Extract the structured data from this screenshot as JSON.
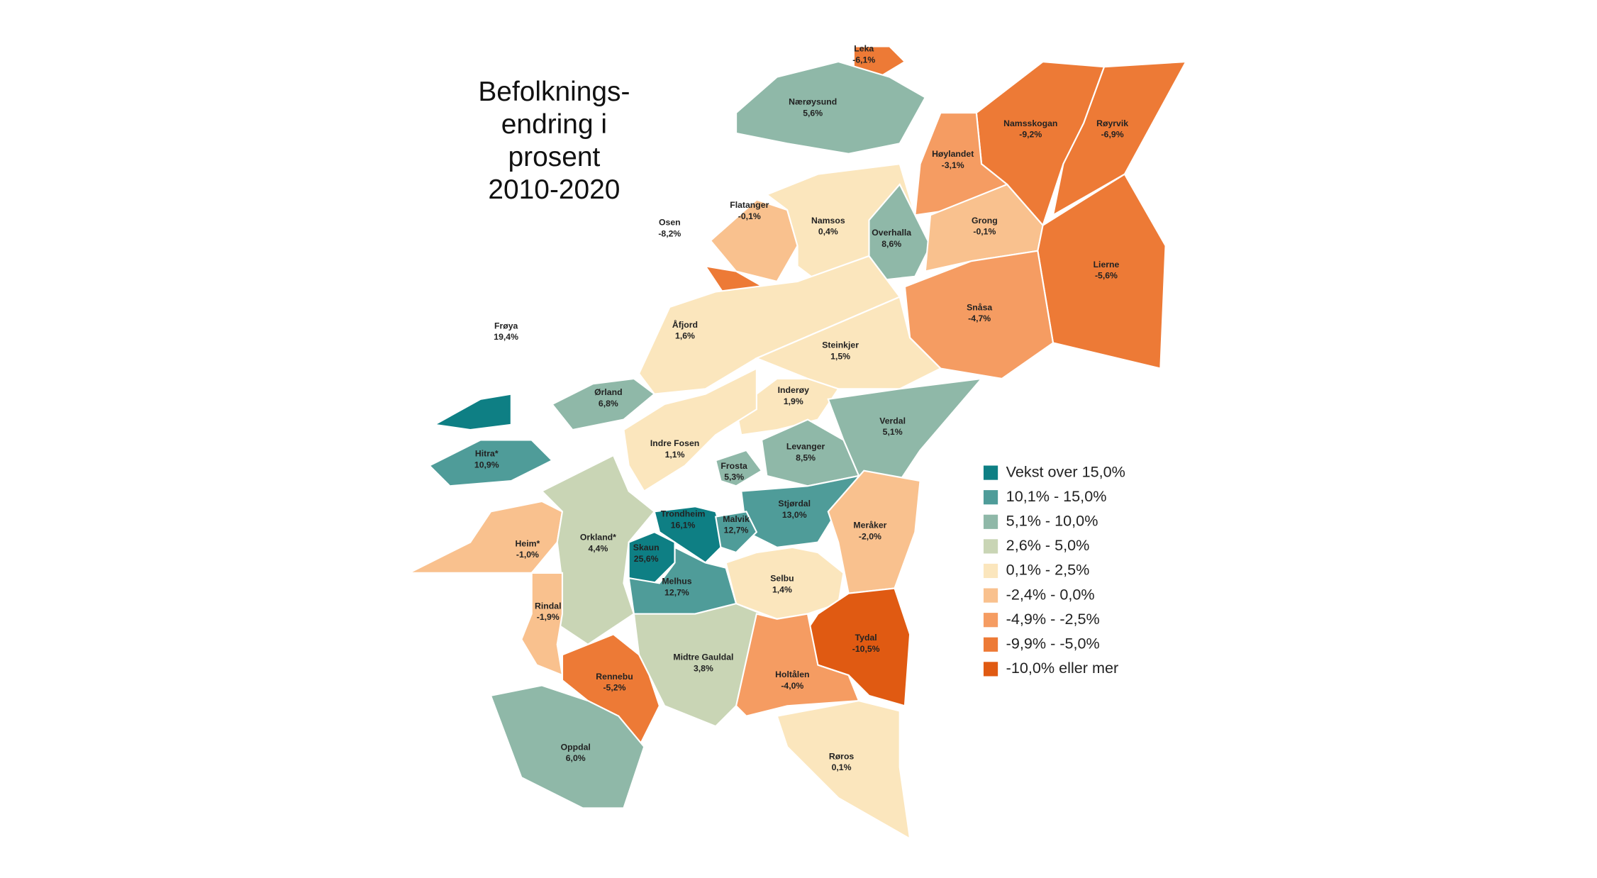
{
  "title_lines": [
    "Befolknings-",
    "endring i",
    "prosent",
    "2010-2020"
  ],
  "regions": [
    {
      "name": "Leka",
      "value": -6.1,
      "value_label": "-6,1%",
      "color": "#ed7a36"
    },
    {
      "name": "Nærøysund",
      "value": 5.6,
      "value_label": "5,6%",
      "color": "#8fb8a8"
    },
    {
      "name": "Namsskogan",
      "value": -9.2,
      "value_label": "-9,2%",
      "color": "#ed7a36"
    },
    {
      "name": "Røyrvik",
      "value": -6.9,
      "value_label": "-6,9%",
      "color": "#ed7a36"
    },
    {
      "name": "Høylandet",
      "value": -3.1,
      "value_label": "-3,1%",
      "color": "#f59c62"
    },
    {
      "name": "Flatanger",
      "value": -0.1,
      "value_label": "-0,1%",
      "color": "#f9c18e"
    },
    {
      "name": "Osen",
      "value": -8.2,
      "value_label": "-8,2%",
      "color": "#ed7a36"
    },
    {
      "name": "Namsos",
      "value": 0.4,
      "value_label": "0,4%",
      "color": "#fbe6bd"
    },
    {
      "name": "Overhalla",
      "value": 8.6,
      "value_label": "8,6%",
      "color": "#8fb8a8"
    },
    {
      "name": "Grong",
      "value": -0.1,
      "value_label": "-0,1%",
      "color": "#f9c18e"
    },
    {
      "name": "Lierne",
      "value": -5.6,
      "value_label": "-5,6%",
      "color": "#ed7a36"
    },
    {
      "name": "Snåsa",
      "value": -4.7,
      "value_label": "-4,7%",
      "color": "#f59c62"
    },
    {
      "name": "Frøya",
      "value": 19.4,
      "value_label": "19,4%",
      "color": "#0e7f84"
    },
    {
      "name": "Åfjord",
      "value": 1.6,
      "value_label": "1,6%",
      "color": "#fbe6bd"
    },
    {
      "name": "Steinkjer",
      "value": 1.5,
      "value_label": "1,5%",
      "color": "#fbe6bd"
    },
    {
      "name": "Ørland",
      "value": 6.8,
      "value_label": "6,8%",
      "color": "#8fb8a8"
    },
    {
      "name": "Inderøy",
      "value": 1.9,
      "value_label": "1,9%",
      "color": "#fbe6bd"
    },
    {
      "name": "Verdal",
      "value": 5.1,
      "value_label": "5,1%",
      "color": "#8fb8a8"
    },
    {
      "name": "Hitra*",
      "value": 10.9,
      "value_label": "10,9%",
      "color": "#4f9c99"
    },
    {
      "name": "Indre Fosen",
      "value": 1.1,
      "value_label": "1,1%",
      "color": "#fbe6bd"
    },
    {
      "name": "Levanger",
      "value": 8.5,
      "value_label": "8,5%",
      "color": "#8fb8a8"
    },
    {
      "name": "Frosta",
      "value": 5.3,
      "value_label": "5,3%",
      "color": "#8fb8a8"
    },
    {
      "name": "Stjørdal",
      "value": 13.0,
      "value_label": "13,0%",
      "color": "#4f9c99"
    },
    {
      "name": "Trondheim",
      "value": 16.1,
      "value_label": "16,1%",
      "color": "#0e7f84"
    },
    {
      "name": "Malvik",
      "value": 12.7,
      "value_label": "12,7%",
      "color": "#4f9c99"
    },
    {
      "name": "Meråker",
      "value": -2.0,
      "value_label": "-2,0%",
      "color": "#f9c18e"
    },
    {
      "name": "Heim*",
      "value": -1.0,
      "value_label": "-1,0%",
      "color": "#f9c18e"
    },
    {
      "name": "Orkland*",
      "value": 4.4,
      "value_label": "4,4%",
      "color": "#c9d5b5"
    },
    {
      "name": "Skaun",
      "value": 25.6,
      "value_label": "25,6%",
      "color": "#0e7f84"
    },
    {
      "name": "Selbu",
      "value": 1.4,
      "value_label": "1,4%",
      "color": "#fbe6bd"
    },
    {
      "name": "Melhus",
      "value": 12.7,
      "value_label": "12,7%",
      "color": "#4f9c99"
    },
    {
      "name": "Rindal",
      "value": -1.9,
      "value_label": "-1,9%",
      "color": "#f9c18e"
    },
    {
      "name": "Tydal",
      "value": -10.5,
      "value_label": "-10,5%",
      "color": "#e05a12"
    },
    {
      "name": "Midtre Gauldal",
      "value": 3.8,
      "value_label": "3,8%",
      "color": "#c9d5b5"
    },
    {
      "name": "Rennebu",
      "value": -5.2,
      "value_label": "-5,2%",
      "color": "#ed7a36"
    },
    {
      "name": "Holtålen",
      "value": -4.0,
      "value_label": "-4,0%",
      "color": "#f59c62"
    },
    {
      "name": "Oppdal",
      "value": 6.0,
      "value_label": "6,0%",
      "color": "#8fb8a8"
    },
    {
      "name": "Røros",
      "value": 0.1,
      "value_label": "0,1%",
      "color": "#fbe6bd"
    }
  ],
  "legend": [
    {
      "label": "Vekst over 15,0%",
      "color": "#0e7f84"
    },
    {
      "label": "10,1% - 15,0%",
      "color": "#4f9c99"
    },
    {
      "label": "5,1% - 10,0%",
      "color": "#8fb8a8"
    },
    {
      "label": "2,6% - 5,0%",
      "color": "#c9d5b5"
    },
    {
      "label": "0,1% - 2,5%",
      "color": "#fbe6bd"
    },
    {
      "label": "-2,4% - 0,0%",
      "color": "#f9c18e"
    },
    {
      "label": "-4,9% - -2,5%",
      "color": "#f59c62"
    },
    {
      "label": "-9,9% - -5,0%",
      "color": "#ed7a36"
    },
    {
      "label": "-10,0% eller mer",
      "color": "#e05a12"
    }
  ]
}
